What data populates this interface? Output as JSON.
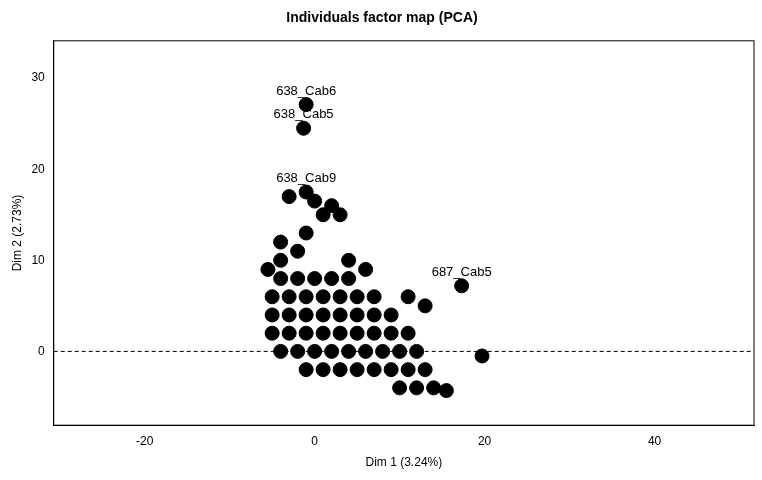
{
  "chart_data": {
    "type": "scatter",
    "title": "Individuals factor map (PCA)",
    "x_label": "Dim 1 (3.24%)",
    "y_label": "Dim 2 (2.73%)",
    "color": "#000000",
    "grid": false,
    "xlim": [
      -30.7,
      51.7
    ],
    "ylim": [
      -8.1,
      34.1
    ],
    "xticks": [
      -20,
      0,
      20,
      40
    ],
    "yticks": [
      0,
      10,
      20,
      30
    ],
    "hlines": [
      0
    ],
    "points": [
      {
        "x": -4,
        "y": 8
      },
      {
        "x": -2,
        "y": 8
      },
      {
        "x": 0,
        "y": 8
      },
      {
        "x": 2,
        "y": 8
      },
      {
        "x": 4,
        "y": 8
      },
      {
        "x": -5,
        "y": 6
      },
      {
        "x": -3,
        "y": 6
      },
      {
        "x": -1,
        "y": 6
      },
      {
        "x": 1,
        "y": 6
      },
      {
        "x": 3,
        "y": 6
      },
      {
        "x": 5,
        "y": 6
      },
      {
        "x": 7,
        "y": 6
      },
      {
        "x": -5,
        "y": 4
      },
      {
        "x": -3,
        "y": 4
      },
      {
        "x": -1,
        "y": 4
      },
      {
        "x": 1,
        "y": 4
      },
      {
        "x": 3,
        "y": 4
      },
      {
        "x": 5,
        "y": 4
      },
      {
        "x": 7,
        "y": 4
      },
      {
        "x": 9,
        "y": 4
      },
      {
        "x": -5,
        "y": 2
      },
      {
        "x": -3,
        "y": 2
      },
      {
        "x": -1,
        "y": 2
      },
      {
        "x": 1,
        "y": 2
      },
      {
        "x": 3,
        "y": 2
      },
      {
        "x": 5,
        "y": 2
      },
      {
        "x": 7,
        "y": 2
      },
      {
        "x": 9,
        "y": 2
      },
      {
        "x": 11,
        "y": 2
      },
      {
        "x": -4,
        "y": 0
      },
      {
        "x": -2,
        "y": 0
      },
      {
        "x": 0,
        "y": 0
      },
      {
        "x": 2,
        "y": 0
      },
      {
        "x": 4,
        "y": 0
      },
      {
        "x": 6,
        "y": 0
      },
      {
        "x": 8,
        "y": 0
      },
      {
        "x": 10,
        "y": 0
      },
      {
        "x": 12,
        "y": 0
      },
      {
        "x": -1,
        "y": -2
      },
      {
        "x": 1,
        "y": -2
      },
      {
        "x": 3,
        "y": -2
      },
      {
        "x": 5,
        "y": -2
      },
      {
        "x": 7,
        "y": -2
      },
      {
        "x": 9,
        "y": -2
      },
      {
        "x": 11,
        "y": -2
      },
      {
        "x": 13,
        "y": -2
      },
      {
        "x": 10,
        "y": -4
      },
      {
        "x": 12,
        "y": -4
      },
      {
        "x": 14,
        "y": -4
      },
      {
        "x": -4,
        "y": 10
      },
      {
        "x": -2,
        "y": 11
      },
      {
        "x": -4,
        "y": 12
      },
      {
        "x": -1,
        "y": 13
      },
      {
        "x": 1,
        "y": 15
      },
      {
        "x": 3,
        "y": 15
      },
      {
        "x": 2,
        "y": 16
      },
      {
        "x": -3,
        "y": 17
      },
      {
        "x": 0,
        "y": 16.5
      },
      {
        "x": -5.5,
        "y": 9
      },
      {
        "x": 6,
        "y": 9
      },
      {
        "x": 4,
        "y": 10
      },
      {
        "x": 13,
        "y": 5
      },
      {
        "x": 11,
        "y": 6
      },
      {
        "x": 19.7,
        "y": -0.5
      },
      {
        "x": 15.5,
        "y": -4.3
      },
      {
        "x": 17.3,
        "y": 7.2,
        "label": "687_Cab5"
      },
      {
        "x": -1,
        "y": 27.1,
        "label": "638_Cab6"
      },
      {
        "x": -1.3,
        "y": 24.5,
        "label": "638_Cab5"
      },
      {
        "x": -1,
        "y": 17.5,
        "label": "638_Cab9"
      }
    ]
  }
}
